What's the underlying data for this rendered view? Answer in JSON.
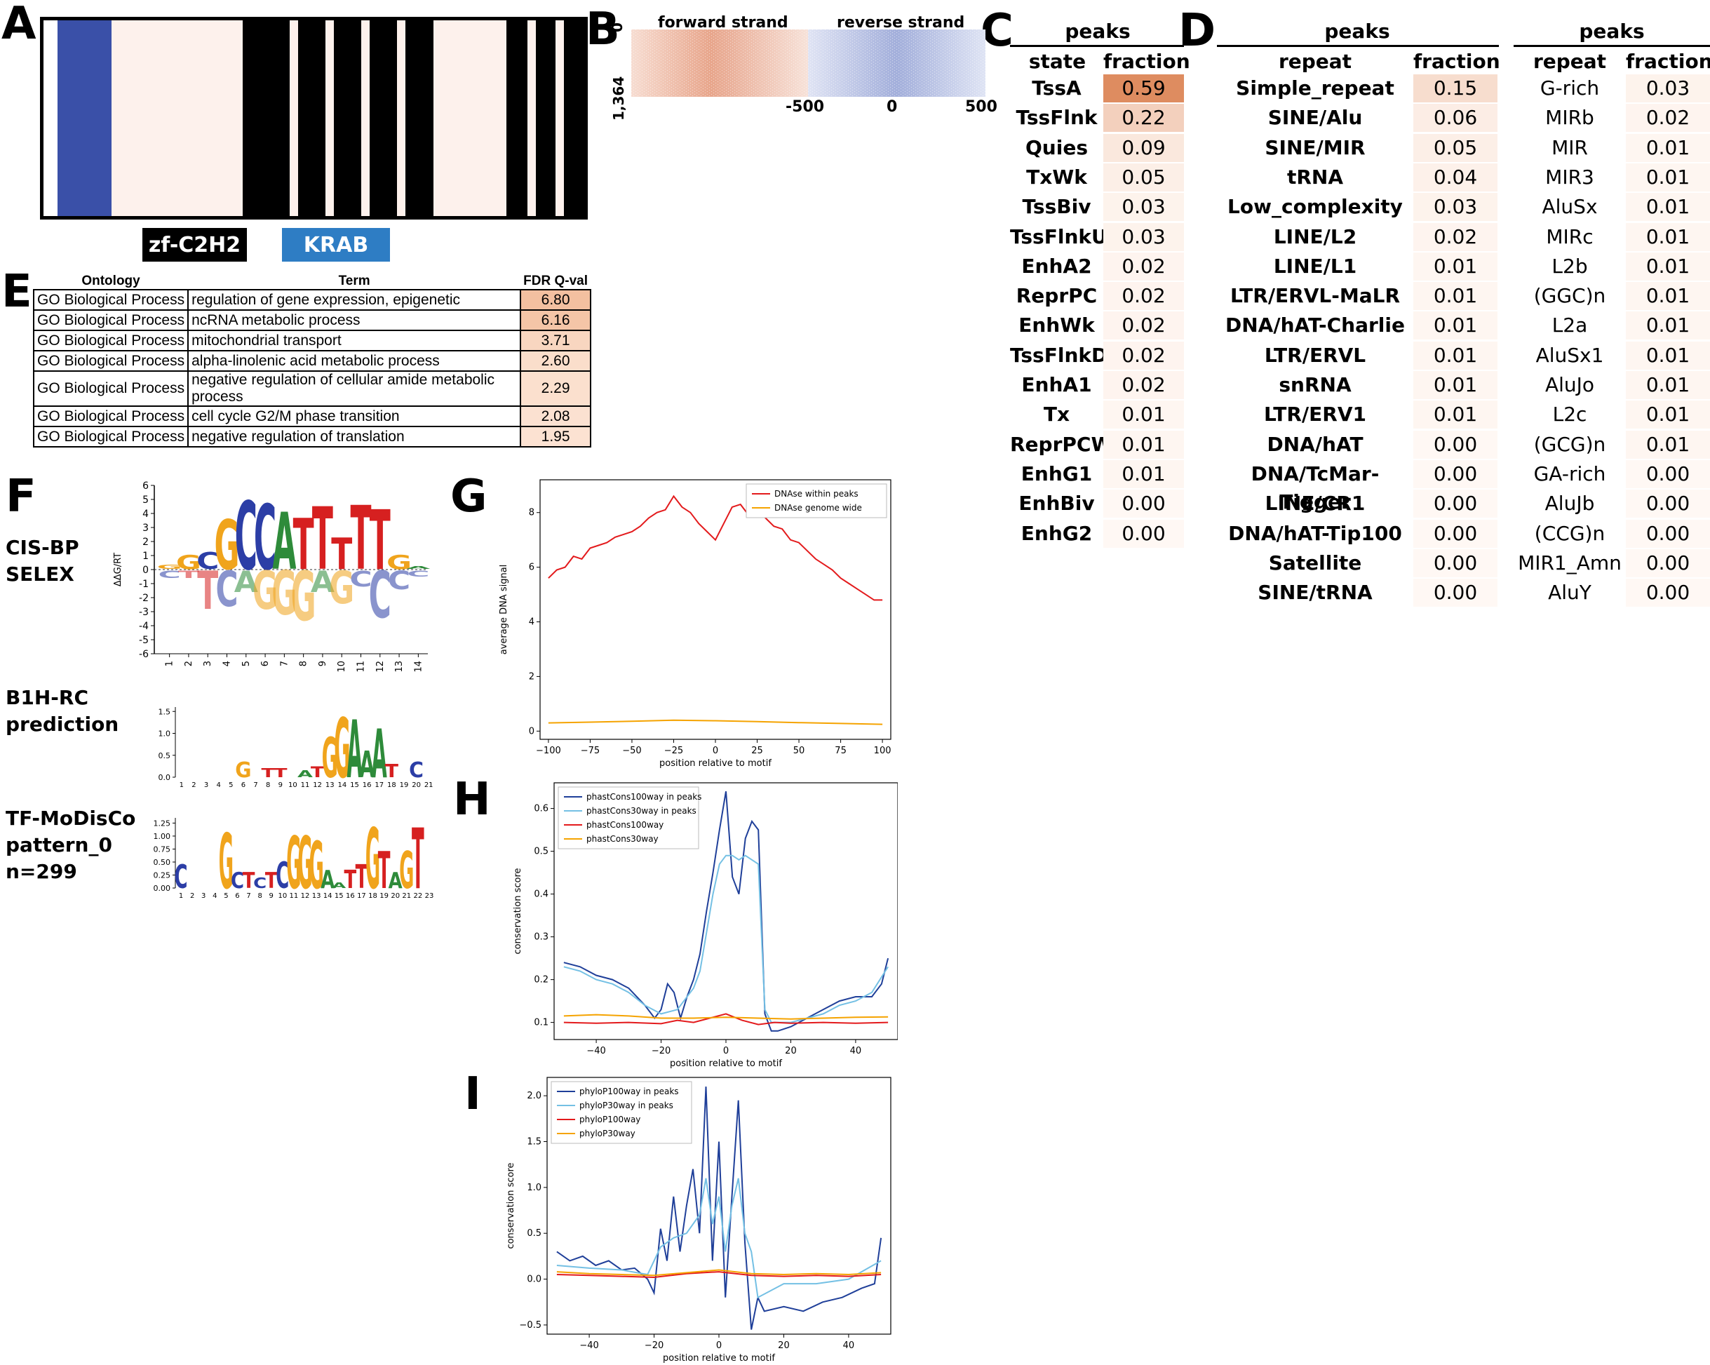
{
  "panel_letters": {
    "A": "A",
    "B": "B",
    "C": "C",
    "D": "D",
    "E": "E",
    "F": "F",
    "G": "G",
    "H": "H",
    "I": "I"
  },
  "panel_a": {
    "legend": [
      {
        "label": "zf-C2H2",
        "color": "#000000"
      },
      {
        "label": "KRAB",
        "color": "#2e7dc4"
      }
    ],
    "colors": {
      "krab": "#3a50a8",
      "zf": "#000000",
      "linker": "#fdf1ec"
    }
  },
  "panel_b": {
    "forward_label": "forward strand",
    "reverse_label": "reverse strand",
    "y_tick_top": "0",
    "y_tick_bottom": "1,364",
    "x_ticks": [
      "-500",
      "0",
      "500"
    ],
    "colors": {
      "forward": "#d9866a",
      "reverse": "#7b8cc8"
    }
  },
  "panel_c": {
    "title": "peaks",
    "col_state": "state",
    "col_fraction": "fraction",
    "rows": [
      {
        "state": "TssA",
        "fraction": "0.59"
      },
      {
        "state": "TssFlnk",
        "fraction": "0.22"
      },
      {
        "state": "Quies",
        "fraction": "0.09"
      },
      {
        "state": "TxWk",
        "fraction": "0.05"
      },
      {
        "state": "TssBiv",
        "fraction": "0.03"
      },
      {
        "state": "TssFlnkU",
        "fraction": "0.03"
      },
      {
        "state": "EnhA2",
        "fraction": "0.02"
      },
      {
        "state": "ReprPC",
        "fraction": "0.02"
      },
      {
        "state": "EnhWk",
        "fraction": "0.02"
      },
      {
        "state": "TssFlnkD",
        "fraction": "0.02"
      },
      {
        "state": "EnhA1",
        "fraction": "0.02"
      },
      {
        "state": "Tx",
        "fraction": "0.01"
      },
      {
        "state": "ReprPCWk",
        "fraction": "0.01"
      },
      {
        "state": "EnhG1",
        "fraction": "0.01"
      },
      {
        "state": "EnhBiv",
        "fraction": "0.00"
      },
      {
        "state": "EnhG2",
        "fraction": "0.00"
      }
    ]
  },
  "panel_d1": {
    "title": "peaks",
    "col_repeat": "repeat",
    "col_fraction": "fraction",
    "rows": [
      {
        "repeat": "Simple_repeat",
        "fraction": "0.15"
      },
      {
        "repeat": "SINE/Alu",
        "fraction": "0.06"
      },
      {
        "repeat": "SINE/MIR",
        "fraction": "0.05"
      },
      {
        "repeat": "tRNA",
        "fraction": "0.04"
      },
      {
        "repeat": "Low_complexity",
        "fraction": "0.03"
      },
      {
        "repeat": "LINE/L2",
        "fraction": "0.02"
      },
      {
        "repeat": "LINE/L1",
        "fraction": "0.01"
      },
      {
        "repeat": "LTR/ERVL-MaLR",
        "fraction": "0.01"
      },
      {
        "repeat": "DNA/hAT-Charlie",
        "fraction": "0.01"
      },
      {
        "repeat": "LTR/ERVL",
        "fraction": "0.01"
      },
      {
        "repeat": "snRNA",
        "fraction": "0.01"
      },
      {
        "repeat": "LTR/ERV1",
        "fraction": "0.01"
      },
      {
        "repeat": "DNA/hAT",
        "fraction": "0.00"
      },
      {
        "repeat": "DNA/TcMar-Tigger",
        "fraction": "0.00"
      },
      {
        "repeat": "LINE/CR1",
        "fraction": "0.00"
      },
      {
        "repeat": "DNA/hAT-Tip100",
        "fraction": "0.00"
      },
      {
        "repeat": "Satellite",
        "fraction": "0.00"
      },
      {
        "repeat": "SINE/tRNA",
        "fraction": "0.00"
      }
    ]
  },
  "panel_d2": {
    "title": "peaks",
    "col_repeat": "repeat",
    "col_fraction": "fraction",
    "rows": [
      {
        "repeat": "G-rich",
        "fraction": "0.03"
      },
      {
        "repeat": "MIRb",
        "fraction": "0.02"
      },
      {
        "repeat": "MIR",
        "fraction": "0.01"
      },
      {
        "repeat": "MIR3",
        "fraction": "0.01"
      },
      {
        "repeat": "AluSx",
        "fraction": "0.01"
      },
      {
        "repeat": "MIRc",
        "fraction": "0.01"
      },
      {
        "repeat": "L2b",
        "fraction": "0.01"
      },
      {
        "repeat": "(GGC)n",
        "fraction": "0.01"
      },
      {
        "repeat": "L2a",
        "fraction": "0.01"
      },
      {
        "repeat": "AluSx1",
        "fraction": "0.01"
      },
      {
        "repeat": "AluJo",
        "fraction": "0.01"
      },
      {
        "repeat": "L2c",
        "fraction": "0.01"
      },
      {
        "repeat": "(GCG)n",
        "fraction": "0.01"
      },
      {
        "repeat": "GA-rich",
        "fraction": "0.00"
      },
      {
        "repeat": "AluJb",
        "fraction": "0.00"
      },
      {
        "repeat": "(CCG)n",
        "fraction": "0.00"
      },
      {
        "repeat": "MIR1_Amn",
        "fraction": "0.00"
      },
      {
        "repeat": "AluY",
        "fraction": "0.00"
      }
    ]
  },
  "panel_e": {
    "headers": {
      "ontology": "Ontology",
      "term": "Term",
      "q": "FDR Q-val"
    },
    "rows": [
      {
        "ontology": "GO Biological Process",
        "term": "regulation of gene expression, epigenetic",
        "q": "6.80"
      },
      {
        "ontology": "GO Biological Process",
        "term": "ncRNA metabolic process",
        "q": "6.16"
      },
      {
        "ontology": "GO Biological Process",
        "term": "mitochondrial transport",
        "q": "3.71"
      },
      {
        "ontology": "GO Biological Process",
        "term": "alpha-linolenic acid metabolic process",
        "q": "2.60"
      },
      {
        "ontology": "GO Biological Process",
        "term": "negative regulation of cellular amide metabolic process",
        "q": "2.29"
      },
      {
        "ontology": "GO Biological Process",
        "term": "cell cycle G2/M phase transition",
        "q": "2.08"
      },
      {
        "ontology": "GO Biological Process",
        "term": "negative regulation of translation",
        "q": "1.95"
      }
    ]
  },
  "panel_f": {
    "labels": [
      {
        "id": "cisbp",
        "lines": [
          "CIS-BP",
          "SELEX"
        ]
      },
      {
        "id": "b1h",
        "lines": [
          "B1H-RC",
          "prediction"
        ]
      },
      {
        "id": "modisco",
        "lines": [
          "TF-MoDisCo",
          "pattern_0",
          "n=299"
        ]
      }
    ],
    "selex_ylabel": "ΔΔG/RT",
    "selex_yticks": [
      "6",
      "5",
      "4",
      "3",
      "2",
      "1",
      "0",
      "-1",
      "-2",
      "-3",
      "-4",
      "-5",
      "-6"
    ],
    "selex_xticks": [
      "1",
      "2",
      "3",
      "4",
      "5",
      "6",
      "7",
      "8",
      "9",
      "10",
      "11",
      "12",
      "13",
      "14"
    ],
    "selex_top_letters": [
      "G",
      "G",
      "C",
      "C",
      "G",
      "C",
      "C",
      "A",
      "T",
      "T",
      "T",
      "T",
      "G"
    ],
    "selex_bottom_letters": [
      "C",
      "T",
      "T",
      "A",
      "A",
      "C",
      "C",
      "A",
      "G",
      "G",
      "A",
      "C",
      "C"
    ],
    "b1h_yticks": [
      "1.5",
      "1.0",
      "0.5",
      "0.0"
    ],
    "b1h_xticks": "1 2 3 4 5 6 7 8 9 10 11 12 13 14 15 16 17 18 19 20 21",
    "b1h_letters": [
      "G",
      "T",
      "T",
      "A",
      "G",
      "G",
      "A",
      "A",
      "T",
      "C"
    ],
    "modisco_yticks": [
      "1.25",
      "1.00",
      "0.75",
      "0.50",
      "0.25",
      "0.00"
    ],
    "modisco_xticks": "1 2 3 4 5 6 7 8 9 10 11 12 13 14 15 16 17 18 19 20 21 22 23",
    "modisco_letters": [
      "C",
      "G",
      "C",
      "T",
      "C",
      "T",
      "G",
      "G",
      "G",
      "A",
      "G",
      "T",
      "A",
      "G",
      "T"
    ]
  },
  "chart_data": [
    {
      "id": "G",
      "type": "line",
      "xlabel": "position relative to motif",
      "ylabel": "average DNA signal",
      "xlim": [
        -105,
        105
      ],
      "ylim": [
        -0.3,
        9.2
      ],
      "xticks": [
        -100,
        -75,
        -50,
        -25,
        0,
        25,
        50,
        75,
        100
      ],
      "xtick_labels": [
        "−100",
        "−75",
        "−50",
        "−25",
        "0",
        "25",
        "50",
        "75",
        "100"
      ],
      "yticks": [
        0,
        2,
        4,
        6,
        8
      ],
      "legend_position": "top-right",
      "series": [
        {
          "name": "DNAse within peaks",
          "color": "#e31a1c",
          "x": [
            -100,
            -95,
            -90,
            -85,
            -80,
            -75,
            -70,
            -65,
            -60,
            -55,
            -50,
            -45,
            -40,
            -35,
            -30,
            -25,
            -20,
            -15,
            -10,
            -5,
            0,
            5,
            10,
            15,
            20,
            25,
            30,
            35,
            40,
            45,
            50,
            55,
            60,
            65,
            70,
            75,
            80,
            85,
            90,
            95,
            100
          ],
          "y": [
            5.6,
            5.9,
            6.0,
            6.4,
            6.3,
            6.7,
            6.8,
            6.9,
            7.1,
            7.2,
            7.3,
            7.5,
            7.8,
            8.0,
            8.1,
            8.6,
            8.2,
            8.0,
            7.6,
            7.3,
            7.0,
            7.6,
            8.2,
            8.3,
            7.9,
            8.1,
            7.8,
            7.5,
            7.4,
            7.0,
            6.9,
            6.6,
            6.3,
            6.1,
            5.9,
            5.6,
            5.4,
            5.2,
            5.0,
            4.8,
            4.8
          ]
        },
        {
          "name": "DNAse genome wide",
          "color": "#f5a300",
          "x": [
            -100,
            -75,
            -50,
            -25,
            0,
            25,
            50,
            75,
            100
          ],
          "y": [
            0.3,
            0.33,
            0.36,
            0.4,
            0.38,
            0.35,
            0.31,
            0.28,
            0.25
          ]
        }
      ]
    },
    {
      "id": "H",
      "type": "line",
      "xlabel": "position relative to motif",
      "ylabel": "conservation score",
      "xlim": [
        -53,
        53
      ],
      "ylim": [
        0.06,
        0.66
      ],
      "xticks": [
        -40,
        -20,
        0,
        20,
        40
      ],
      "xtick_labels": [
        "−40",
        "−20",
        "0",
        "20",
        "40"
      ],
      "yticks": [
        0.1,
        0.2,
        0.3,
        0.4,
        0.5,
        0.6
      ],
      "legend_position": "top-left",
      "series": [
        {
          "name": "phastCons100way in peaks",
          "color": "#1f3f99",
          "x": [
            -50,
            -45,
            -40,
            -35,
            -30,
            -25,
            -22,
            -20,
            -18,
            -16,
            -14,
            -12,
            -10,
            -8,
            -6,
            -4,
            -2,
            0,
            2,
            4,
            6,
            8,
            10,
            12,
            14,
            16,
            20,
            25,
            30,
            35,
            40,
            45,
            48,
            50
          ],
          "y": [
            0.24,
            0.23,
            0.21,
            0.2,
            0.18,
            0.14,
            0.11,
            0.13,
            0.19,
            0.17,
            0.11,
            0.16,
            0.2,
            0.26,
            0.36,
            0.45,
            0.55,
            0.64,
            0.44,
            0.4,
            0.53,
            0.57,
            0.55,
            0.12,
            0.08,
            0.08,
            0.09,
            0.11,
            0.13,
            0.15,
            0.16,
            0.16,
            0.19,
            0.25
          ]
        },
        {
          "name": "phastCons30way in peaks",
          "color": "#74c0e4",
          "x": [
            -50,
            -45,
            -40,
            -35,
            -30,
            -25,
            -20,
            -15,
            -10,
            -8,
            -6,
            -4,
            -2,
            0,
            2,
            4,
            6,
            8,
            10,
            12,
            14,
            16,
            20,
            25,
            30,
            35,
            40,
            45,
            50
          ],
          "y": [
            0.23,
            0.22,
            0.2,
            0.19,
            0.17,
            0.14,
            0.12,
            0.13,
            0.18,
            0.22,
            0.31,
            0.4,
            0.47,
            0.49,
            0.49,
            0.48,
            0.49,
            0.48,
            0.47,
            0.13,
            0.1,
            0.1,
            0.1,
            0.11,
            0.12,
            0.14,
            0.15,
            0.17,
            0.23
          ]
        },
        {
          "name": "phastCons100way",
          "color": "#e31a1c",
          "x": [
            -50,
            -40,
            -30,
            -20,
            -15,
            -10,
            -5,
            0,
            5,
            10,
            15,
            20,
            30,
            40,
            50
          ],
          "y": [
            0.1,
            0.098,
            0.1,
            0.097,
            0.105,
            0.1,
            0.11,
            0.12,
            0.105,
            0.095,
            0.1,
            0.098,
            0.1,
            0.098,
            0.1
          ]
        },
        {
          "name": "phastCons30way",
          "color": "#f5a300",
          "x": [
            -50,
            -40,
            -30,
            -20,
            -10,
            0,
            10,
            20,
            30,
            40,
            50
          ],
          "y": [
            0.115,
            0.118,
            0.115,
            0.11,
            0.11,
            0.112,
            0.11,
            0.108,
            0.11,
            0.112,
            0.113
          ]
        }
      ]
    },
    {
      "id": "I",
      "type": "line",
      "xlabel": "position relative to motif",
      "ylabel": "conservation score",
      "xlim": [
        -53,
        53
      ],
      "ylim": [
        -0.6,
        2.2
      ],
      "xticks": [
        -40,
        -20,
        0,
        20,
        40
      ],
      "xtick_labels": [
        "−40",
        "−20",
        "0",
        "20",
        "40"
      ],
      "yticks": [
        -0.5,
        0.0,
        0.5,
        1.0,
        1.5,
        2.0
      ],
      "legend_position": "top-left",
      "series": [
        {
          "name": "phyloP100way in peaks",
          "color": "#1f3f99",
          "x": [
            -50,
            -46,
            -42,
            -38,
            -34,
            -30,
            -26,
            -22,
            -20,
            -18,
            -16,
            -14,
            -12,
            -10,
            -8,
            -6,
            -4,
            -2,
            0,
            2,
            4,
            6,
            8,
            10,
            12,
            14,
            20,
            26,
            32,
            38,
            44,
            48,
            50
          ],
          "y": [
            0.3,
            0.2,
            0.25,
            0.15,
            0.2,
            0.1,
            0.12,
            0.0,
            -0.15,
            0.55,
            0.2,
            0.9,
            0.3,
            0.8,
            1.2,
            0.5,
            2.1,
            0.2,
            1.5,
            -0.2,
            0.9,
            1.95,
            0.4,
            -0.55,
            -0.2,
            -0.35,
            -0.3,
            -0.35,
            -0.25,
            -0.2,
            -0.1,
            -0.05,
            0.45
          ]
        },
        {
          "name": "phyloP30way in peaks",
          "color": "#74c0e4",
          "x": [
            -50,
            -40,
            -30,
            -22,
            -18,
            -14,
            -10,
            -6,
            -4,
            -2,
            0,
            2,
            4,
            6,
            8,
            10,
            12,
            20,
            30,
            40,
            50
          ],
          "y": [
            0.15,
            0.12,
            0.1,
            0.05,
            0.35,
            0.45,
            0.5,
            0.7,
            1.1,
            0.6,
            0.9,
            0.3,
            0.8,
            1.1,
            0.5,
            0.3,
            -0.2,
            -0.05,
            -0.05,
            0.0,
            0.2
          ]
        },
        {
          "name": "phyloP100way",
          "color": "#e31a1c",
          "x": [
            -50,
            -40,
            -30,
            -20,
            -10,
            0,
            10,
            20,
            30,
            40,
            50
          ],
          "y": [
            0.05,
            0.04,
            0.03,
            0.02,
            0.06,
            0.08,
            0.04,
            0.03,
            0.04,
            0.03,
            0.05
          ]
        },
        {
          "name": "phyloP30way",
          "color": "#f5a300",
          "x": [
            -50,
            -40,
            -30,
            -20,
            -10,
            0,
            10,
            20,
            30,
            40,
            50
          ],
          "y": [
            0.08,
            0.06,
            0.05,
            0.04,
            0.07,
            0.1,
            0.06,
            0.05,
            0.06,
            0.05,
            0.07
          ]
        }
      ]
    }
  ]
}
